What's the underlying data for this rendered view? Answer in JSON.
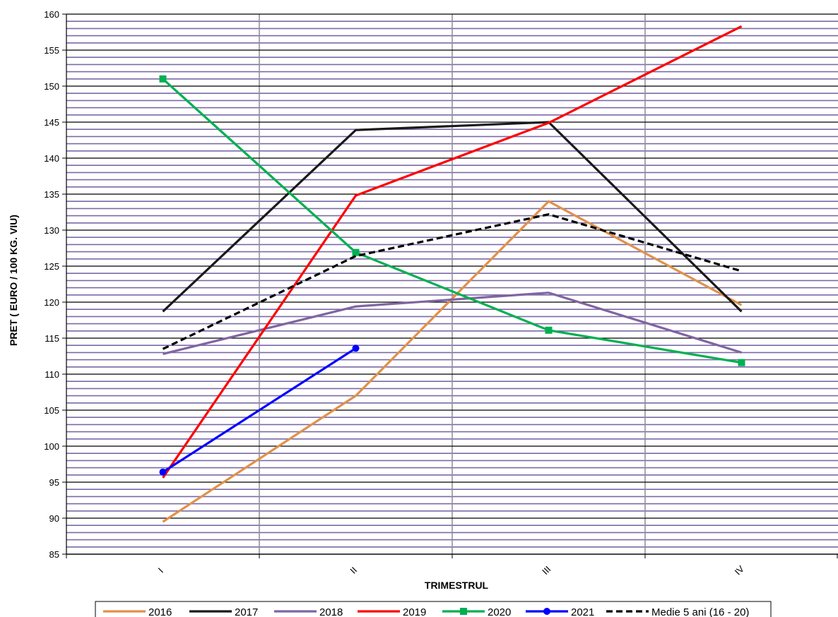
{
  "chart_data": {
    "type": "line",
    "title": "",
    "xlabel": "TRIMESTRUL",
    "ylabel": "PRET ( EURO / 100 KG. VIU)",
    "categories": [
      "I",
      "II",
      "III",
      "IV"
    ],
    "ylim": [
      85,
      160
    ],
    "y_major_step": 5,
    "y_minor_step": 1,
    "grid": true,
    "legend_position": "bottom",
    "series": [
      {
        "name": "2016",
        "color": "#E0914A",
        "dash": false,
        "marker": "none",
        "values": [
          89.5,
          107,
          134,
          119.6
        ]
      },
      {
        "name": "2017",
        "color": "#1A1A1A",
        "dash": false,
        "marker": "none",
        "values": [
          118.7,
          143.9,
          145,
          118.7
        ]
      },
      {
        "name": "2018",
        "color": "#8064A2",
        "dash": false,
        "marker": "none",
        "values": [
          112.8,
          119.4,
          121.3,
          113
        ]
      },
      {
        "name": "2019",
        "color": "#FF0000",
        "dash": false,
        "marker": "none",
        "values": [
          95.6,
          134.8,
          144.9,
          158.3
        ]
      },
      {
        "name": "2020",
        "color": "#00B050",
        "dash": false,
        "marker": "square",
        "values": [
          151,
          126.9,
          116.1,
          111.6
        ]
      },
      {
        "name": "2021",
        "color": "#0000FF",
        "dash": false,
        "marker": "circle",
        "values": [
          96.4,
          113.6,
          null,
          null
        ]
      },
      {
        "name": "Medie 5 ani (16 - 20)",
        "color": "#000000",
        "dash": true,
        "marker": "none",
        "values": [
          113.5,
          126.4,
          132.2,
          124.3
        ]
      }
    ]
  }
}
